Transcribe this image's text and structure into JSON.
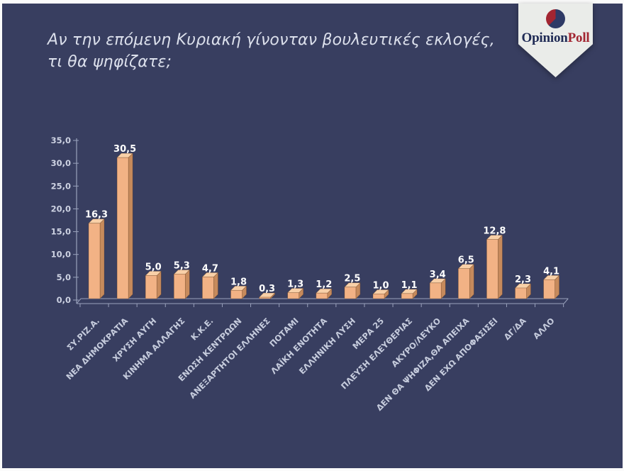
{
  "slide": {
    "background_color": "#383e60",
    "title_lines": [
      "Αν την επόμενη Κυριακή γίνονταν βουλευτικές εκλογές,",
      "τι θα ψηφίζατε;"
    ]
  },
  "logo": {
    "text_primary": "Opinion",
    "text_secondary": "Poll",
    "primary_color": "#202b55",
    "secondary_color": "#a22531",
    "banner_color": "#eaece9",
    "pie_icon_colors": {
      "navy": "#2e3a66",
      "red": "#a22531"
    }
  },
  "chart_data": {
    "type": "bar",
    "title": "",
    "xlabel": "",
    "ylabel": "",
    "ylim": [
      0,
      35
    ],
    "ytick_step": 5,
    "ytick_labels": [
      "0,0",
      "5,0",
      "10,0",
      "15,0",
      "20,0",
      "25,0",
      "30,0",
      "35,0"
    ],
    "grid": false,
    "legend": null,
    "bar_style": "3d",
    "bar_color": "#f2b285",
    "bar_color_top": "#f8d0a8",
    "bar_color_side": "#c68a5c",
    "value_label_color": "#ffffff",
    "axis_label_color": "#cdd2e2",
    "categories": [
      "ΣΥ.ΡΙΖ.Α.",
      "ΝΕΑ ΔΗΜΟΚΡΑΤΙΑ",
      "ΧΡΥΣΗ ΑΥΓΗ",
      "ΚΙΝΗΜΑ ΑΛΛΑΓΗΣ",
      "Κ.Κ.Ε.",
      "ΕΝΩΣΗ ΚΕΝΤΡΩΩΝ",
      "ΑΝΕΞΑΡΤΗΤΟΙ ΕΛΛΗΝΕΣ",
      "ΠΟΤΑΜΙ",
      "ΛΑΪΚΗ ΕΝΟΤΗΤΑ",
      "ΕΛΛΗΝΙΚΗ ΛΥΣΗ",
      "ΜΕΡΑ 25",
      "ΠΛΕΥΣΗ ΕΛΕΥΘΕΡΙΑΣ",
      "ΑΚΥΡΟ/ΛΕΥΚΟ",
      "ΔΕΝ ΘΑ ΨΗΦΙΖΑ,ΘΑ ΑΠΕΙΧΑ",
      "ΔΕΝ ΕΧΩ ΑΠΟΦΑΣΙΣΕΙ",
      "ΔΓ/ΔΑ",
      "ΑΛΛΟ"
    ],
    "values": [
      16.3,
      30.5,
      5.0,
      5.3,
      4.7,
      1.8,
      0.3,
      1.3,
      1.2,
      2.5,
      1.0,
      1.1,
      3.4,
      6.5,
      12.8,
      2.3,
      4.1
    ],
    "value_labels": [
      "16,3",
      "30,5",
      "5,0",
      "5,3",
      "4,7",
      "1,8",
      "0,3",
      "1,3",
      "1,2",
      "2,5",
      "1,0",
      "1,1",
      "3,4",
      "6,5",
      "12,8",
      "2,3",
      "4,1"
    ]
  }
}
